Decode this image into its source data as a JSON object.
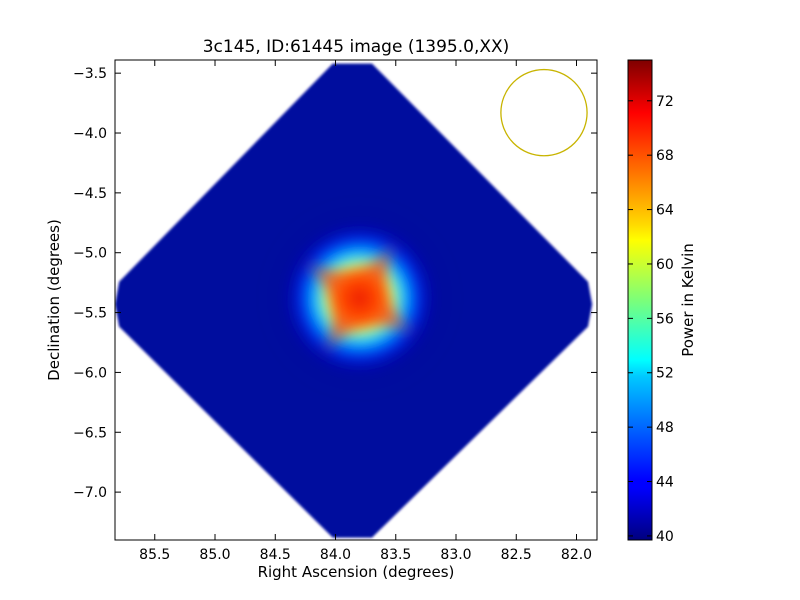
{
  "chart_data": {
    "type": "heatmap",
    "title": "3c145, ID:61445 image (1395.0,XX)",
    "xlabel": "Right Ascension (degrees)",
    "ylabel": "Declination (degrees)",
    "xlim": [
      85.83,
      81.83
    ],
    "ylim": [
      -7.4,
      -3.39
    ],
    "x_ticks": [
      "85.5",
      "85.0",
      "84.5",
      "84.0",
      "83.5",
      "83.0",
      "82.5",
      "82.0"
    ],
    "y_ticks": [
      "-3.5",
      "-4.0",
      "-4.5",
      "-5.0",
      "-5.5",
      "-6.0",
      "-6.5",
      "-7.0"
    ],
    "colorbar": {
      "label": "Power in Kelvin",
      "range": [
        39.7,
        75.0
      ],
      "ticks": [
        "40",
        "44",
        "48",
        "52",
        "56",
        "60",
        "64",
        "68",
        "72"
      ],
      "colormap": "jet"
    },
    "image_extent": {
      "center_ra": 83.86,
      "center_dec": -5.43,
      "top_dec": -3.42,
      "bottom_dec": -7.38,
      "left_ra": 85.83,
      "right_ra": 81.87
    },
    "source": {
      "ra": 83.8,
      "dec": -5.38,
      "peak": 75,
      "background": 42
    },
    "beam_circle": {
      "center_ra": 82.27,
      "center_dec": -3.83,
      "radius_deg": 0.36,
      "color": "#c8b400"
    }
  }
}
